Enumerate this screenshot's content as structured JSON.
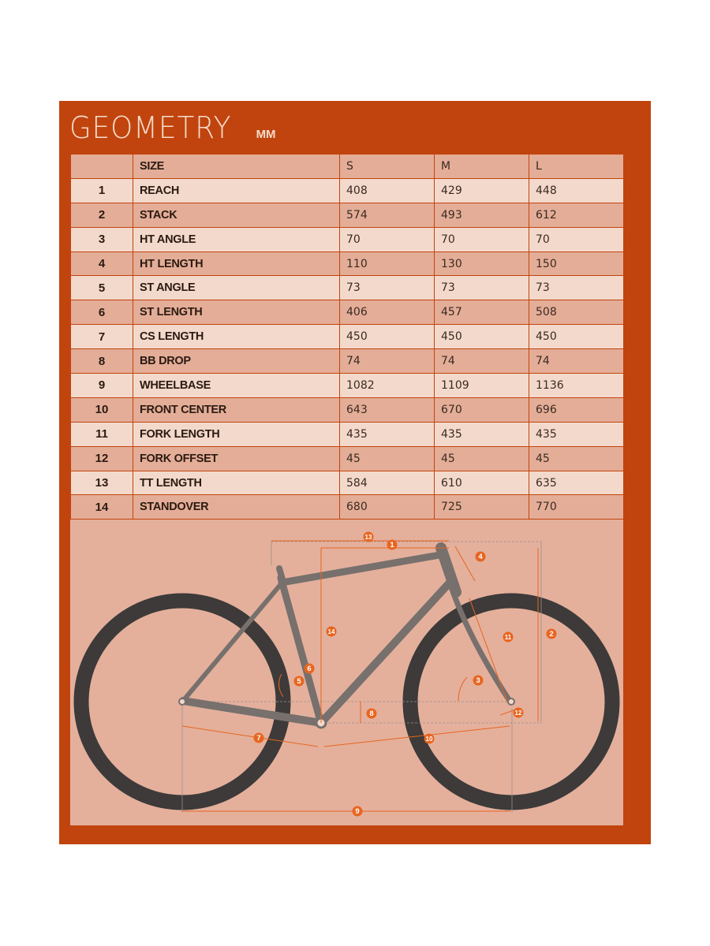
{
  "title": "GEOMETRY",
  "unit": "MM",
  "header": {
    "number": "",
    "label": "SIZE",
    "sizes": [
      "S",
      "M",
      "L"
    ]
  },
  "rows": [
    {
      "number": "1",
      "label": "REACH",
      "values": [
        "408",
        "429",
        "448"
      ]
    },
    {
      "number": "2",
      "label": "STACK",
      "values": [
        "574",
        "493",
        "612"
      ]
    },
    {
      "number": "3",
      "label": "HT ANGLE",
      "values": [
        "70",
        "70",
        "70"
      ]
    },
    {
      "number": "4",
      "label": "HT LENGTH",
      "values": [
        "110",
        "130",
        "150"
      ]
    },
    {
      "number": "5",
      "label": "ST ANGLE",
      "values": [
        "73",
        "73",
        "73"
      ]
    },
    {
      "number": "6",
      "label": "ST LENGTH",
      "values": [
        "406",
        "457",
        "508"
      ]
    },
    {
      "number": "7",
      "label": "CS LENGTH",
      "values": [
        "450",
        "450",
        "450"
      ]
    },
    {
      "number": "8",
      "label": "BB DROP",
      "values": [
        "74",
        "74",
        "74"
      ]
    },
    {
      "number": "9",
      "label": "WHEELBASE",
      "values": [
        "1082",
        "1109",
        "1136"
      ]
    },
    {
      "number": "10",
      "label": "FRONT CENTER",
      "values": [
        "643",
        "670",
        "696"
      ]
    },
    {
      "number": "11",
      "label": "FORK LENGTH",
      "values": [
        "435",
        "435",
        "435"
      ]
    },
    {
      "number": "12",
      "label": "FORK OFFSET",
      "values": [
        "45",
        "45",
        "45"
      ]
    },
    {
      "number": "13",
      "label": "TT LENGTH",
      "values": [
        "584",
        "610",
        "635"
      ]
    },
    {
      "number": "14",
      "label": "STANDOVER",
      "values": [
        "680",
        "725",
        "770"
      ]
    }
  ],
  "diagram": {
    "badges": [
      "13",
      "1",
      "4",
      "14",
      "6",
      "2",
      "11",
      "5",
      "3",
      "8",
      "12",
      "7",
      "10",
      "9"
    ]
  },
  "colors": {
    "panel": "#c1440e",
    "row_light": "#f3d9cb",
    "row_dark": "#e4ad97",
    "diagram_bg": "#e4b09c",
    "tire": "#3d3a39",
    "frame": "#77706d",
    "accent": "#e8651f"
  }
}
